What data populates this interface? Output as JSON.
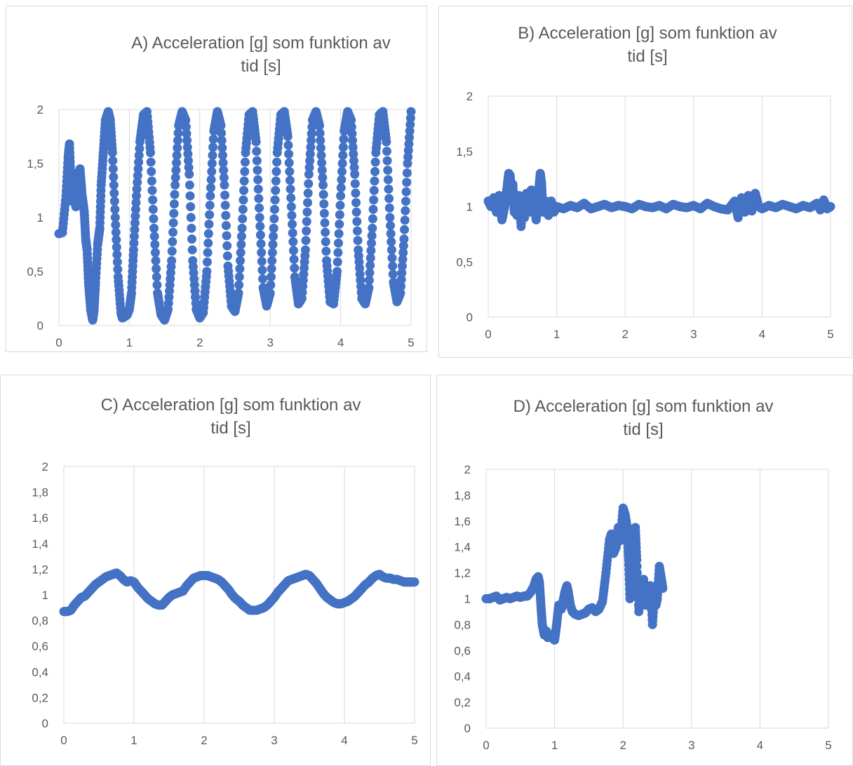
{
  "chart_data": [
    {
      "type": "scatter",
      "title": [
        "A) Acceleration [g] som funktion av",
        "tid [s]"
      ],
      "xlabel": "",
      "ylabel": "",
      "xlim": [
        0,
        5
      ],
      "ylim": [
        0,
        2
      ],
      "xticks": [
        0,
        1,
        2,
        3,
        4,
        5
      ],
      "yticks": [
        0,
        0.5,
        1,
        1.5,
        2
      ],
      "xtick_labels": [
        "0",
        "1",
        "2",
        "3",
        "4",
        "5"
      ],
      "ytick_labels": [
        "0",
        "0,5",
        "1",
        "1,5",
        "2"
      ],
      "grid": "vertical",
      "color": "#4472c4",
      "series": [
        {
          "x": [
            0,
            0.05,
            0.1,
            0.13,
            0.15,
            0.17,
            0.19,
            0.21,
            0.24,
            0.27,
            0.3,
            0.33,
            0.36,
            0.38,
            0.4,
            0.42,
            0.45,
            0.48,
            0.5,
            0.52,
            0.55,
            0.58,
            0.6,
            0.63,
            0.66,
            0.7,
            0.73,
            0.76,
            0.8,
            0.84,
            0.88,
            0.9,
            0.93,
            0.97,
            1,
            1.03,
            1.06,
            1.1,
            1.15,
            1.2,
            1.25,
            1.3,
            1.35,
            1.4,
            1.45,
            1.5,
            1.55,
            1.6,
            1.65,
            1.7,
            1.75,
            1.8,
            1.85,
            1.9,
            1.95,
            2,
            2.05,
            2.1,
            2.15,
            2.2,
            2.25,
            2.3,
            2.35,
            2.4,
            2.45,
            2.5,
            2.55,
            2.6,
            2.65,
            2.7,
            2.75,
            2.8,
            2.85,
            2.9,
            2.95,
            3,
            3.05,
            3.1,
            3.15,
            3.2,
            3.25,
            3.3,
            3.35,
            3.4,
            3.45,
            3.5,
            3.55,
            3.6,
            3.65,
            3.7,
            3.75,
            3.8,
            3.85,
            3.9,
            3.95,
            4,
            4.05,
            4.1,
            4.15,
            4.2,
            4.25,
            4.3,
            4.35,
            4.4,
            4.45,
            4.5,
            4.55,
            4.6,
            4.65,
            4.7,
            4.75,
            4.8,
            4.85,
            4.9,
            4.95,
            5
          ],
          "y": [
            0.85,
            0.86,
            1.2,
            1.55,
            1.68,
            1.35,
            1.15,
            1.3,
            1.1,
            1.4,
            1.45,
            1.2,
            1.05,
            0.8,
            0.7,
            0.4,
            0.15,
            0.05,
            0.15,
            0.4,
            0.75,
            0.9,
            1.3,
            1.6,
            1.9,
            1.98,
            1.9,
            1.6,
            1.0,
            0.45,
            0.12,
            0.07,
            0.08,
            0.1,
            0.15,
            0.3,
            0.7,
            1.2,
            1.7,
            1.95,
            1.98,
            1.6,
            0.9,
            0.3,
            0.1,
            0.05,
            0.15,
            0.6,
            1.3,
            1.85,
            1.98,
            1.9,
            1.4,
            0.6,
            0.15,
            0.07,
            0.12,
            0.5,
            1.2,
            1.8,
            1.98,
            1.85,
            1.3,
            0.55,
            0.18,
            0.13,
            0.3,
            0.9,
            1.6,
            1.95,
            1.98,
            1.7,
            1.0,
            0.35,
            0.18,
            0.3,
            0.9,
            1.6,
            1.95,
            1.98,
            1.75,
            1.1,
            0.45,
            0.2,
            0.25,
            0.7,
            1.4,
            1.9,
            1.98,
            1.85,
            1.3,
            0.6,
            0.22,
            0.2,
            0.5,
            1.2,
            1.8,
            1.98,
            1.9,
            1.4,
            0.7,
            0.25,
            0.2,
            0.35,
            0.9,
            1.6,
            1.95,
            1.98,
            1.7,
            1.0,
            0.4,
            0.22,
            0.3,
            0.8,
            1.5,
            1.98
          ]
        }
      ]
    },
    {
      "type": "scatter",
      "title": [
        "B) Acceleration [g] som funktion av",
        "tid [s]"
      ],
      "xlabel": "",
      "ylabel": "",
      "xlim": [
        0,
        5
      ],
      "ylim": [
        0,
        2
      ],
      "xticks": [
        0,
        1,
        2,
        3,
        4,
        5
      ],
      "yticks": [
        0,
        0.5,
        1,
        1.5,
        2
      ],
      "xtick_labels": [
        "0",
        "1",
        "2",
        "3",
        "4",
        "5"
      ],
      "ytick_labels": [
        "0",
        "0,5",
        "1",
        "1,5",
        "2"
      ],
      "grid": "vertical",
      "color": "#4472c4",
      "series": [
        {
          "x": [
            0,
            0.04,
            0.08,
            0.12,
            0.16,
            0.2,
            0.24,
            0.28,
            0.3,
            0.32,
            0.34,
            0.36,
            0.38,
            0.4,
            0.42,
            0.45,
            0.48,
            0.5,
            0.53,
            0.56,
            0.6,
            0.63,
            0.66,
            0.7,
            0.73,
            0.76,
            0.78,
            0.8,
            0.84,
            0.88,
            0.92,
            0.96,
            1,
            1.1,
            1.2,
            1.3,
            1.4,
            1.5,
            1.6,
            1.7,
            1.8,
            1.9,
            2,
            2.1,
            2.2,
            2.3,
            2.4,
            2.5,
            2.6,
            2.7,
            2.8,
            2.9,
            3,
            3.1,
            3.2,
            3.3,
            3.4,
            3.5,
            3.6,
            3.65,
            3.7,
            3.75,
            3.8,
            3.85,
            3.9,
            3.95,
            4,
            4.1,
            4.2,
            4.3,
            4.4,
            4.5,
            4.6,
            4.7,
            4.8,
            4.85,
            4.9,
            4.95,
            5
          ],
          "y": [
            1.05,
            1.0,
            1.08,
            0.95,
            1.1,
            0.88,
            1.0,
            1.2,
            1.3,
            1.28,
            1.15,
            1.2,
            0.95,
            1.1,
            0.92,
            1.1,
            0.82,
            1.05,
            0.9,
            1.12,
            0.95,
            1.15,
            1.05,
            0.88,
            1.1,
            1.3,
            1.2,
            0.95,
            1.05,
            0.92,
            1.05,
            0.95,
            1.0,
            0.98,
            1.01,
            0.99,
            1.03,
            0.98,
            1.0,
            1.02,
            0.99,
            1.01,
            1.0,
            0.98,
            1.02,
            1.0,
            0.99,
            1.01,
            0.98,
            1.02,
            1.0,
            0.99,
            1.01,
            0.98,
            1.03,
            1.0,
            0.98,
            0.97,
            1.05,
            0.9,
            1.08,
            0.95,
            1.1,
            0.96,
            1.12,
            1.0,
            0.98,
            1.01,
            0.99,
            1.02,
            1.0,
            0.98,
            1.01,
            0.99,
            1.03,
            0.97,
            1.06,
            0.98,
            1.0
          ]
        }
      ]
    },
    {
      "type": "scatter",
      "title": [
        "C) Acceleration [g] som funktion av",
        "tid [s]"
      ],
      "xlabel": "",
      "ylabel": "",
      "xlim": [
        0,
        5
      ],
      "ylim": [
        0,
        2
      ],
      "xticks": [
        0,
        1,
        2,
        3,
        4,
        5
      ],
      "yticks": [
        0,
        0.2,
        0.4,
        0.6,
        0.8,
        1,
        1.2,
        1.4,
        1.6,
        1.8,
        2
      ],
      "xtick_labels": [
        "0",
        "1",
        "2",
        "3",
        "4",
        "5"
      ],
      "ytick_labels": [
        "0",
        "0,2",
        "0,4",
        "0,6",
        "0,8",
        "1",
        "1,2",
        "1,4",
        "1,6",
        "1,8",
        "2"
      ],
      "grid": "vertical",
      "color": "#4472c4",
      "series": [
        {
          "x": [
            0,
            0.05,
            0.1,
            0.15,
            0.2,
            0.25,
            0.3,
            0.35,
            0.4,
            0.45,
            0.5,
            0.55,
            0.6,
            0.65,
            0.7,
            0.75,
            0.8,
            0.85,
            0.9,
            0.95,
            1,
            1.05,
            1.1,
            1.15,
            1.2,
            1.25,
            1.3,
            1.35,
            1.4,
            1.45,
            1.5,
            1.55,
            1.6,
            1.65,
            1.7,
            1.75,
            1.8,
            1.85,
            1.9,
            1.95,
            2,
            2.05,
            2.1,
            2.15,
            2.2,
            2.25,
            2.3,
            2.35,
            2.4,
            2.45,
            2.5,
            2.55,
            2.6,
            2.65,
            2.7,
            2.75,
            2.8,
            2.85,
            2.9,
            2.95,
            3,
            3.05,
            3.1,
            3.15,
            3.2,
            3.25,
            3.3,
            3.35,
            3.4,
            3.45,
            3.5,
            3.55,
            3.6,
            3.65,
            3.7,
            3.75,
            3.8,
            3.85,
            3.9,
            3.95,
            4,
            4.05,
            4.1,
            4.15,
            4.2,
            4.25,
            4.3,
            4.35,
            4.4,
            4.45,
            4.5,
            4.55,
            4.6,
            4.65,
            4.7,
            4.75,
            4.8,
            4.85,
            4.9,
            4.95,
            5
          ],
          "y": [
            0.87,
            0.87,
            0.88,
            0.92,
            0.95,
            0.98,
            0.99,
            1.02,
            1.05,
            1.08,
            1.1,
            1.12,
            1.14,
            1.15,
            1.16,
            1.17,
            1.15,
            1.12,
            1.1,
            1.11,
            1.1,
            1.06,
            1.03,
            1.0,
            0.97,
            0.95,
            0.93,
            0.92,
            0.92,
            0.95,
            0.98,
            1.0,
            1.01,
            1.02,
            1.03,
            1.07,
            1.1,
            1.13,
            1.14,
            1.15,
            1.15,
            1.15,
            1.14,
            1.13,
            1.12,
            1.1,
            1.07,
            1.04,
            1.0,
            0.97,
            0.95,
            0.92,
            0.9,
            0.88,
            0.88,
            0.88,
            0.89,
            0.9,
            0.92,
            0.95,
            0.98,
            1.02,
            1.05,
            1.08,
            1.11,
            1.12,
            1.13,
            1.14,
            1.15,
            1.16,
            1.15,
            1.12,
            1.09,
            1.05,
            1.01,
            0.98,
            0.96,
            0.94,
            0.93,
            0.93,
            0.94,
            0.95,
            0.97,
            0.99,
            1.02,
            1.05,
            1.08,
            1.1,
            1.13,
            1.15,
            1.16,
            1.14,
            1.13,
            1.13,
            1.12,
            1.12,
            1.11,
            1.1,
            1.1,
            1.1,
            1.1
          ]
        }
      ]
    },
    {
      "type": "scatter",
      "title": [
        "D) Acceleration [g] som funktion av",
        "tid [s]"
      ],
      "xlabel": "",
      "ylabel": "",
      "xlim": [
        0,
        5
      ],
      "ylim": [
        0,
        2
      ],
      "xticks": [
        0,
        1,
        2,
        3,
        4,
        5
      ],
      "yticks": [
        0,
        0.2,
        0.4,
        0.6,
        0.8,
        1,
        1.2,
        1.4,
        1.6,
        1.8,
        2
      ],
      "xtick_labels": [
        "0",
        "1",
        "2",
        "3",
        "4",
        "5"
      ],
      "ytick_labels": [
        "0",
        "0,2",
        "0,4",
        "0,6",
        "0,8",
        "1",
        "1,2",
        "1,4",
        "1,6",
        "1,8",
        "2"
      ],
      "grid": "vertical",
      "color": "#4472c4",
      "series": [
        {
          "x": [
            0,
            0.05,
            0.1,
            0.15,
            0.2,
            0.25,
            0.3,
            0.35,
            0.4,
            0.45,
            0.5,
            0.55,
            0.6,
            0.65,
            0.7,
            0.73,
            0.76,
            0.78,
            0.8,
            0.82,
            0.85,
            0.88,
            0.9,
            0.93,
            0.96,
            1.0,
            1.03,
            1.06,
            1.1,
            1.15,
            1.18,
            1.2,
            1.23,
            1.26,
            1.3,
            1.35,
            1.4,
            1.45,
            1.5,
            1.55,
            1.6,
            1.65,
            1.7,
            1.75,
            1.8,
            1.83,
            1.86,
            1.9,
            1.93,
            1.96,
            2.0,
            2.03,
            2.06,
            2.08,
            2.1,
            2.12,
            2.15,
            2.18,
            2.2,
            2.23,
            2.26,
            2.28,
            2.3,
            2.33,
            2.36,
            2.4,
            2.43,
            2.46,
            2.48,
            2.5,
            2.53,
            2.56,
            2.58
          ],
          "y": [
            1.0,
            1.0,
            1.01,
            1.02,
            0.99,
            1.0,
            1.01,
            1.0,
            1.01,
            1.02,
            1.01,
            1.02,
            1.02,
            1.05,
            1.1,
            1.15,
            1.17,
            1.12,
            0.95,
            0.8,
            0.72,
            0.75,
            0.7,
            0.72,
            0.7,
            0.68,
            0.8,
            0.95,
            0.92,
            1.05,
            1.1,
            1.05,
            0.95,
            0.9,
            0.88,
            0.87,
            0.88,
            0.89,
            0.92,
            0.93,
            0.9,
            0.92,
            0.98,
            1.2,
            1.45,
            1.5,
            1.35,
            1.4,
            1.55,
            1.45,
            1.7,
            1.65,
            1.55,
            1.3,
            1.0,
            1.2,
            1.45,
            1.55,
            1.3,
            0.9,
            1.1,
            1.0,
            1.15,
            0.95,
            1.05,
            1.1,
            0.8,
            1.05,
            0.95,
            1.0,
            1.25,
            1.15,
            1.08
          ]
        }
      ]
    }
  ]
}
